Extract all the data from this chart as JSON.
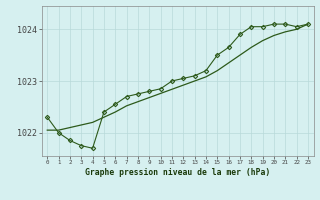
{
  "hours": [
    0,
    1,
    2,
    3,
    4,
    5,
    6,
    7,
    8,
    9,
    10,
    11,
    12,
    13,
    14,
    15,
    16,
    17,
    18,
    19,
    20,
    21,
    22,
    23
  ],
  "pressure_markers": [
    1022.3,
    1022.0,
    1021.85,
    1021.75,
    1021.7,
    1022.4,
    1022.55,
    1022.7,
    1022.75,
    1022.8,
    1022.85,
    1023.0,
    1023.05,
    1023.1,
    1023.2,
    1023.5,
    1023.65,
    1023.9,
    1024.05,
    1024.05,
    1024.1,
    1024.1,
    1024.05,
    1024.1
  ],
  "smooth_y": [
    1022.05,
    1022.05,
    1022.1,
    1022.15,
    1022.2,
    1022.3,
    1022.4,
    1022.52,
    1022.6,
    1022.68,
    1022.76,
    1022.84,
    1022.92,
    1023.0,
    1023.08,
    1023.2,
    1023.35,
    1023.5,
    1023.65,
    1023.78,
    1023.88,
    1023.95,
    1024.0,
    1024.1
  ],
  "line_color": "#2d5a1b",
  "marker_color": "#2d5a1b",
  "bg_color": "#d6f0f0",
  "grid_color": "#b8dada",
  "title": "Graphe pression niveau de la mer (hPa)",
  "ylabel_ticks": [
    1022,
    1023,
    1024
  ],
  "xlim": [
    -0.5,
    23.5
  ],
  "ylim": [
    1021.55,
    1024.45
  ]
}
